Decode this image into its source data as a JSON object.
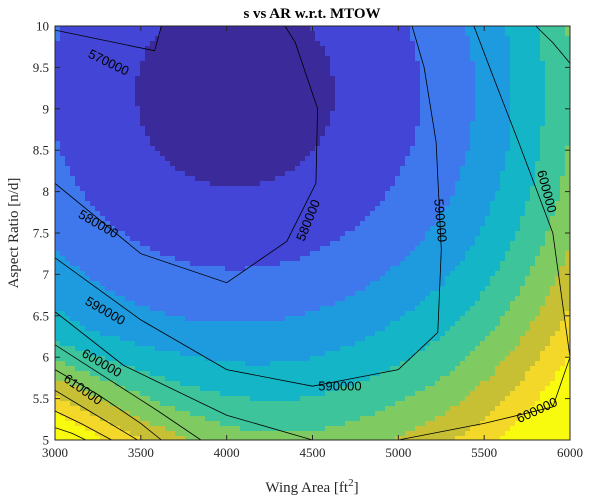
{
  "chart_data": {
    "type": "contour",
    "title": "s vs AR w.r.t. MTOW",
    "xlabel": "Wing Area [ft",
    "xlabel_sup": "2",
    "xlabel_end": "]",
    "ylabel": "Aspect Ratio [n/d]",
    "xlim": [
      3000,
      6000
    ],
    "ylim": [
      5,
      10
    ],
    "xticks": [
      3000,
      3500,
      4000,
      4500,
      5000,
      5500,
      6000
    ],
    "yticks": [
      5,
      5.5,
      6,
      6.5,
      7,
      7.5,
      8,
      8.5,
      9,
      9.5,
      10
    ],
    "ytick_labels": [
      "5",
      "5.5",
      "6",
      "6.5",
      "7",
      "7.5",
      "8",
      "8.5",
      "9",
      "9.5",
      "10"
    ],
    "grid": false,
    "colormap": "parula",
    "levels": [
      570000,
      580000,
      590000,
      600000,
      610000,
      620000,
      630000,
      640000,
      650000
    ],
    "level_colors": [
      "#3a2a9a",
      "#4245d6",
      "#3f78ec",
      "#1e9adf",
      "#14b5c6",
      "#3ec49a",
      "#80cb61",
      "#c8c034",
      "#f3d82a",
      "#f9fb0e"
    ],
    "contour_lines": [
      {
        "level": 570000,
        "points": [
          [
            3000,
            9.95
          ],
          [
            3580,
            9.7
          ],
          [
            3620,
            10.0
          ]
        ]
      },
      {
        "level": 580000,
        "points": [
          [
            3000,
            8.1
          ],
          [
            3500,
            7.25
          ],
          [
            4000,
            6.9
          ],
          [
            4350,
            7.4
          ],
          [
            4520,
            8.1
          ],
          [
            4530,
            9.0
          ],
          [
            4400,
            9.8
          ],
          [
            4340,
            10.0
          ]
        ]
      },
      {
        "level": 590000,
        "points": [
          [
            3000,
            7.2
          ],
          [
            3500,
            6.45
          ],
          [
            4000,
            5.85
          ],
          [
            4500,
            5.65
          ],
          [
            5000,
            5.85
          ],
          [
            5230,
            6.3
          ],
          [
            5250,
            7.3
          ],
          [
            5220,
            8.6
          ],
          [
            5150,
            9.5
          ],
          [
            5080,
            10.0
          ]
        ]
      },
      {
        "level": 600000,
        "points": [
          [
            3000,
            6.55
          ],
          [
            3400,
            5.9
          ],
          [
            4000,
            5.3
          ],
          [
            4500,
            5.0
          ],
          [
            5000,
            5.0
          ],
          [
            5500,
            5.2
          ],
          [
            5900,
            5.4
          ],
          [
            6000,
            6.0
          ],
          [
            5900,
            7.5
          ],
          [
            5700,
            8.6
          ],
          [
            5550,
            9.4
          ],
          [
            5440,
            10.0
          ]
        ]
      },
      {
        "level": 610000,
        "points": [
          [
            3000,
            6.15
          ],
          [
            3300,
            5.75
          ],
          [
            3600,
            5.35
          ],
          [
            3850,
            5.0
          ]
        ]
      },
      {
        "level": 620000,
        "points": [
          [
            3000,
            5.85
          ],
          [
            3250,
            5.55
          ],
          [
            3500,
            5.2
          ],
          [
            3620,
            5.0
          ]
        ]
      },
      {
        "level": 630000,
        "points": [
          [
            3000,
            5.6
          ],
          [
            3200,
            5.35
          ],
          [
            3400,
            5.1
          ],
          [
            3480,
            5.0
          ]
        ]
      },
      {
        "level": 640000,
        "points": [
          [
            3000,
            5.35
          ],
          [
            3150,
            5.2
          ],
          [
            3330,
            5.0
          ]
        ]
      },
      {
        "level": 650000,
        "points": [
          [
            3000,
            5.15
          ],
          [
            3100,
            5.08
          ],
          [
            3180,
            5.0
          ]
        ]
      },
      {
        "level": 600000,
        "points": [
          [
            5800,
            10.0
          ],
          [
            5900,
            9.8
          ],
          [
            6000,
            9.55
          ]
        ]
      }
    ],
    "contour_labels": [
      {
        "text": "570000",
        "x": 3310,
        "y": 9.55,
        "angle": 26
      },
      {
        "text": "580000",
        "x": 3250,
        "y": 7.6,
        "angle": 30
      },
      {
        "text": "580000",
        "x": 4480,
        "y": 7.65,
        "angle": -68
      },
      {
        "text": "590000",
        "x": 3290,
        "y": 6.55,
        "angle": 30
      },
      {
        "text": "590000",
        "x": 5240,
        "y": 7.65,
        "angle": 85
      },
      {
        "text": "590000",
        "x": 4660,
        "y": 5.64,
        "angle": 0
      },
      {
        "text": "600000",
        "x": 3270,
        "y": 5.92,
        "angle": 30
      },
      {
        "text": "600000",
        "x": 5860,
        "y": 8.0,
        "angle": 75
      },
      {
        "text": "600000",
        "x": 5810,
        "y": 5.35,
        "angle": -25
      },
      {
        "text": "610000",
        "x": 3160,
        "y": 5.6,
        "angle": 35
      }
    ]
  }
}
